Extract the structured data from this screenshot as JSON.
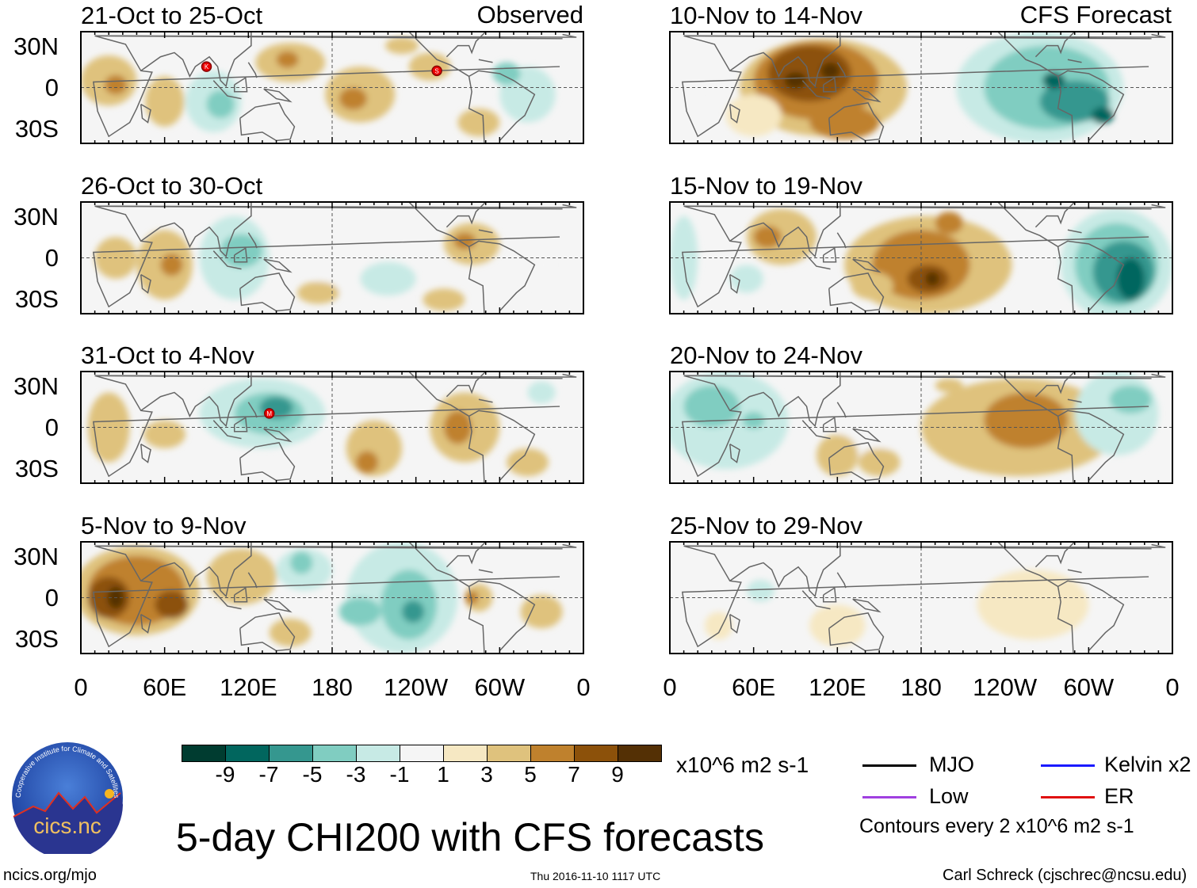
{
  "header": {
    "left_label": "Observed",
    "right_label": "CFS Forecast"
  },
  "lat_ticks": [
    "30N",
    "0",
    "30S"
  ],
  "lon_ticks": [
    "0",
    "60E",
    "120E",
    "180",
    "120W",
    "60W",
    "0"
  ],
  "panels_left": [
    {
      "title": "21-Oct to 25-Oct",
      "blobs": [
        [
          20,
          5,
          20,
          18,
          3
        ],
        [
          25,
          2,
          8,
          7,
          5
        ],
        [
          95,
          -10,
          20,
          22,
          -3
        ],
        [
          100,
          -12,
          10,
          10,
          -5
        ],
        [
          150,
          18,
          25,
          14,
          3
        ],
        [
          148,
          20,
          8,
          6,
          5
        ],
        [
          200,
          -5,
          25,
          20,
          3
        ],
        [
          195,
          -8,
          10,
          8,
          5
        ],
        [
          60,
          -10,
          14,
          18,
          3
        ],
        [
          250,
          15,
          15,
          10,
          3
        ],
        [
          320,
          -5,
          20,
          20,
          -3
        ],
        [
          305,
          10,
          10,
          8,
          -5
        ],
        [
          285,
          -25,
          15,
          10,
          3
        ],
        [
          230,
          30,
          12,
          6,
          3
        ]
      ],
      "storms": [
        [
          90,
          15,
          "K"
        ],
        [
          255,
          12,
          "S"
        ]
      ]
    },
    {
      "title": "26-Oct to 30-Oct",
      "blobs": [
        [
          60,
          -5,
          20,
          25,
          3
        ],
        [
          65,
          -5,
          8,
          8,
          5
        ],
        [
          25,
          0,
          15,
          15,
          3
        ],
        [
          110,
          0,
          25,
          30,
          -3
        ],
        [
          115,
          5,
          15,
          12,
          -5
        ],
        [
          190,
          -10,
          25,
          15,
          -1
        ],
        [
          220,
          -15,
          20,
          12,
          -3
        ],
        [
          280,
          10,
          20,
          15,
          3
        ],
        [
          275,
          12,
          8,
          6,
          5
        ],
        [
          325,
          -5,
          12,
          15,
          -1
        ],
        [
          170,
          -25,
          15,
          8,
          3
        ],
        [
          260,
          -30,
          15,
          8,
          3
        ]
      ],
      "storms": []
    },
    {
      "title": "31-Oct to 4-Nov",
      "blobs": [
        [
          130,
          10,
          45,
          25,
          -3
        ],
        [
          135,
          10,
          25,
          15,
          -5
        ],
        [
          140,
          14,
          12,
          8,
          -7
        ],
        [
          275,
          0,
          25,
          25,
          3
        ],
        [
          270,
          0,
          10,
          12,
          5
        ],
        [
          210,
          -15,
          20,
          20,
          3
        ],
        [
          205,
          -25,
          8,
          8,
          5
        ],
        [
          20,
          0,
          15,
          25,
          3
        ],
        [
          60,
          -5,
          15,
          10,
          3
        ],
        [
          330,
          25,
          10,
          8,
          -3
        ],
        [
          240,
          20,
          15,
          8,
          -1
        ],
        [
          320,
          -25,
          15,
          10,
          3
        ]
      ],
      "storms": [
        [
          135,
          10,
          "M"
        ]
      ]
    },
    {
      "title": "5-Nov to 9-Nov",
      "blobs": [
        [
          40,
          5,
          45,
          32,
          3
        ],
        [
          40,
          5,
          35,
          25,
          5
        ],
        [
          20,
          0,
          15,
          15,
          7
        ],
        [
          25,
          0,
          6,
          8,
          9
        ],
        [
          65,
          -5,
          12,
          10,
          7
        ],
        [
          115,
          15,
          25,
          20,
          3
        ],
        [
          160,
          20,
          20,
          15,
          -3
        ],
        [
          158,
          25,
          8,
          8,
          -5
        ],
        [
          230,
          0,
          40,
          40,
          -3
        ],
        [
          235,
          -5,
          20,
          25,
          -5
        ],
        [
          238,
          -10,
          8,
          8,
          -7
        ],
        [
          200,
          -10,
          15,
          10,
          -5
        ],
        [
          285,
          0,
          10,
          10,
          3
        ],
        [
          280,
          0,
          5,
          5,
          5
        ],
        [
          330,
          -10,
          15,
          12,
          3
        ],
        [
          150,
          -25,
          15,
          10,
          3
        ]
      ],
      "storms": []
    }
  ],
  "panels_right": [
    {
      "title": "10-Nov to 14-Nov",
      "blobs": [
        [
          110,
          0,
          60,
          35,
          3
        ],
        [
          105,
          5,
          45,
          28,
          5
        ],
        [
          100,
          10,
          30,
          20,
          7
        ],
        [
          90,
          5,
          8,
          6,
          9
        ],
        [
          115,
          12,
          7,
          6,
          9
        ],
        [
          125,
          -25,
          25,
          12,
          5
        ],
        [
          60,
          -20,
          20,
          15,
          1
        ],
        [
          265,
          0,
          60,
          40,
          -3
        ],
        [
          270,
          0,
          45,
          30,
          -5
        ],
        [
          290,
          -10,
          25,
          15,
          -7
        ],
        [
          310,
          -20,
          8,
          6,
          -9
        ],
        [
          275,
          5,
          8,
          6,
          -9
        ],
        [
          10,
          0,
          10,
          25,
          -1
        ]
      ],
      "storms": []
    },
    {
      "title": "15-Nov to 19-Nov",
      "blobs": [
        [
          185,
          -5,
          60,
          35,
          3
        ],
        [
          180,
          -5,
          35,
          25,
          5
        ],
        [
          185,
          -15,
          15,
          10,
          7
        ],
        [
          188,
          -15,
          5,
          5,
          9
        ],
        [
          80,
          15,
          25,
          20,
          3
        ],
        [
          70,
          15,
          10,
          8,
          5
        ],
        [
          200,
          25,
          10,
          8,
          5
        ],
        [
          320,
          -5,
          40,
          40,
          -3
        ],
        [
          320,
          -5,
          30,
          30,
          -5
        ],
        [
          325,
          -10,
          22,
          22,
          -7
        ],
        [
          330,
          -15,
          10,
          15,
          -9
        ],
        [
          55,
          -15,
          12,
          10,
          -3
        ],
        [
          10,
          0,
          10,
          30,
          -3
        ],
        [
          145,
          -20,
          15,
          10,
          3
        ]
      ],
      "storms": []
    },
    {
      "title": "20-Nov to 24-Nov",
      "blobs": [
        [
          40,
          5,
          45,
          35,
          -3
        ],
        [
          30,
          15,
          20,
          15,
          -5
        ],
        [
          60,
          5,
          8,
          6,
          -5
        ],
        [
          140,
          -5,
          20,
          20,
          -1
        ],
        [
          250,
          0,
          70,
          35,
          3
        ],
        [
          255,
          5,
          30,
          20,
          5
        ],
        [
          265,
          5,
          15,
          10,
          5
        ],
        [
          200,
          30,
          10,
          5,
          3
        ],
        [
          320,
          10,
          30,
          30,
          -3
        ],
        [
          330,
          20,
          15,
          10,
          -5
        ],
        [
          120,
          -20,
          15,
          15,
          3
        ],
        [
          150,
          -25,
          15,
          10,
          3
        ]
      ],
      "storms": []
    },
    {
      "title": "25-Nov to 29-Nov",
      "blobs": [
        [
          50,
          5,
          25,
          25,
          -1
        ],
        [
          65,
          5,
          10,
          8,
          -3
        ],
        [
          150,
          5,
          20,
          15,
          -1
        ],
        [
          260,
          -5,
          40,
          25,
          1
        ],
        [
          120,
          -20,
          20,
          15,
          1
        ],
        [
          330,
          20,
          15,
          15,
          -1
        ],
        [
          35,
          -20,
          10,
          10,
          1
        ]
      ],
      "storms": []
    }
  ],
  "colorbar": {
    "colors": [
      "#003c30",
      "#01665e",
      "#35978f",
      "#80cdc1",
      "#c7eae5",
      "#f5f5f5",
      "#f6e8c3",
      "#dfc27d",
      "#bf812d",
      "#8c510a",
      "#543005"
    ],
    "labels": [
      "-9",
      "-7",
      "-5",
      "-3",
      "-1",
      "1",
      "3",
      "5",
      "7",
      "9"
    ],
    "units": "x10^6 m2 s-1"
  },
  "legend": {
    "items": [
      {
        "label": "MJO",
        "color": "#000000"
      },
      {
        "label": "Kelvin x2",
        "color": "#1a1aff"
      },
      {
        "label": "Low",
        "color": "#a040e0"
      },
      {
        "label": "ER",
        "color": "#e01010"
      }
    ],
    "contours_note": "Contours every 2 x10^6 m2 s-1"
  },
  "footer": {
    "title": "5-day CHI200 with CFS forecasts",
    "site": "ncics.org/mjo",
    "timestamp": "Thu 2016-11-10 1117 UTC",
    "credit": "Carl Schreck (cjschrec@ncsu.edu)",
    "logo_text": "cics.nc",
    "logo_ring_text": "Cooperative Institute for Climate and Satellites"
  }
}
